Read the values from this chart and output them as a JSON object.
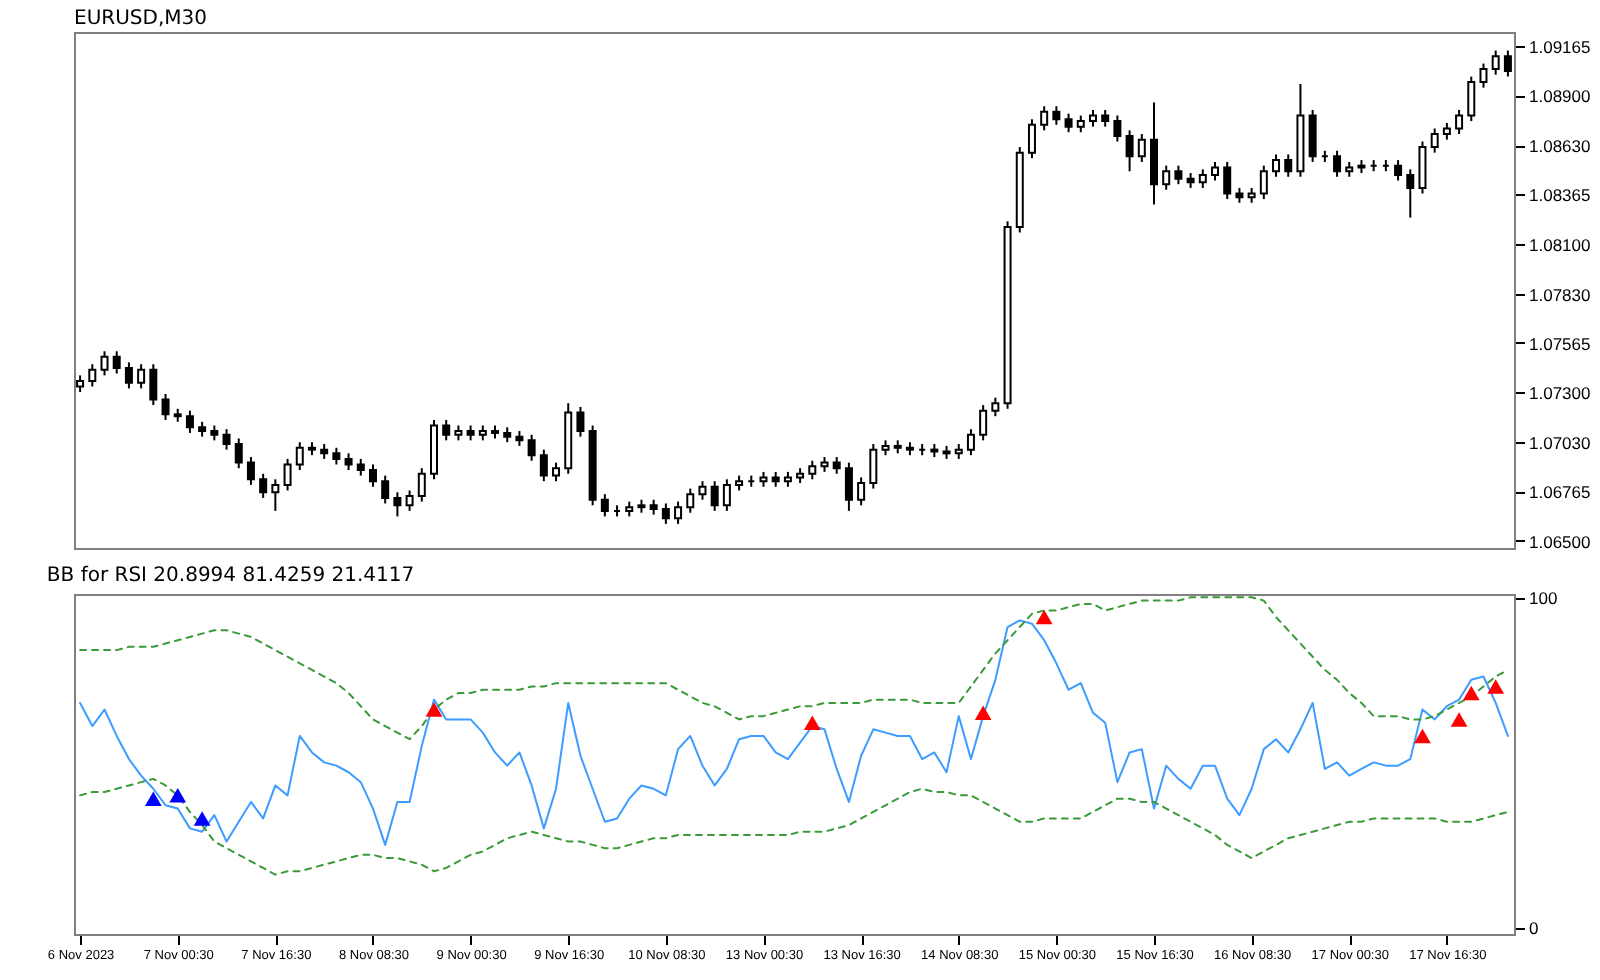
{
  "chart_data": [
    {
      "type": "candlestick",
      "title": "EURUSD,M30",
      "color": "#000000",
      "grid": false,
      "tick_labels": "y",
      "ylim": [
        1.0646,
        1.0924
      ],
      "categories": [
        null,
        null,
        null,
        null,
        null,
        null,
        null,
        null,
        null,
        null,
        null,
        null,
        null,
        null,
        null,
        null,
        null,
        null,
        null,
        null,
        null,
        null,
        null,
        null,
        null,
        null,
        null,
        null,
        null,
        null,
        null,
        null,
        null,
        null,
        null,
        null,
        null,
        null,
        null,
        null,
        null,
        null,
        null,
        null,
        null,
        null,
        null,
        null,
        null,
        null,
        null,
        null,
        null,
        null,
        null,
        null,
        null,
        null,
        null,
        null,
        null,
        null,
        null,
        null,
        null,
        null,
        null,
        null,
        null,
        null,
        null,
        null,
        null,
        null,
        null,
        null,
        null,
        null,
        null,
        null,
        null,
        null,
        null,
        null,
        null,
        null,
        null,
        null,
        null,
        null,
        null,
        null,
        null,
        null,
        null,
        null,
        null,
        null,
        null,
        null,
        null,
        null,
        null,
        null,
        null,
        null,
        null,
        null,
        null,
        null,
        null,
        null,
        null,
        null,
        null,
        null,
        null,
        null
      ],
      "yticks": [
        1.09165,
        {
          "value": 1.089,
          "label": "1.08900"
        },
        {
          "value": 1.0863,
          "label": "1.08630"
        },
        1.08365,
        {
          "value": 1.081,
          "label": "1.08100"
        },
        {
          "value": 1.0783,
          "label": "1.07830"
        },
        1.07565,
        {
          "value": 1.073,
          "label": "1.07300"
        },
        {
          "value": 1.0703,
          "label": "1.07030"
        },
        1.06765,
        {
          "value": 1.065,
          "label": "1.06500"
        }
      ],
      "ohlc": [
        [
          1.0733,
          1.0739,
          1.073,
          1.0736
        ],
        [
          1.0736,
          1.0745,
          1.0733,
          1.0742
        ],
        [
          1.0742,
          1.0752,
          1.0739,
          1.0749
        ],
        [
          1.0749,
          1.0752,
          1.074,
          1.0743
        ],
        [
          1.0743,
          1.0746,
          1.0732,
          1.0735
        ],
        [
          1.0735,
          1.0745,
          1.0732,
          1.0742
        ],
        [
          1.0742,
          1.0745,
          1.0723,
          1.0726
        ],
        [
          1.0726,
          1.0729,
          1.0715,
          1.0718
        ],
        [
          1.0718,
          1.0721,
          1.0714,
          1.0717
        ],
        [
          1.0717,
          1.072,
          1.0708,
          1.0711
        ],
        [
          1.0711,
          1.0714,
          1.0706,
          1.0709
        ],
        [
          1.0709,
          1.0712,
          1.0704,
          1.0707
        ],
        [
          1.0707,
          1.071,
          1.0699,
          1.0702
        ],
        [
          1.0702,
          1.0705,
          1.0689,
          1.0692
        ],
        [
          1.0692,
          1.0695,
          1.068,
          1.0683
        ],
        [
          1.0683,
          1.0686,
          1.0673,
          1.0676
        ],
        [
          1.0676,
          1.0683,
          1.0666,
          1.068
        ],
        [
          1.068,
          1.0694,
          1.0677,
          1.0691
        ],
        [
          1.0691,
          1.0703,
          1.0688,
          1.07
        ],
        [
          1.07,
          1.0703,
          1.0696,
          1.0699
        ],
        [
          1.0699,
          1.0702,
          1.0694,
          1.0697
        ],
        [
          1.0697,
          1.07,
          1.0691,
          1.0694
        ],
        [
          1.0694,
          1.0697,
          1.0688,
          1.0691
        ],
        [
          1.0691,
          1.0694,
          1.0685,
          1.0688
        ],
        [
          1.0688,
          1.0691,
          1.0679,
          1.0682
        ],
        [
          1.0682,
          1.0685,
          1.067,
          1.0673
        ],
        [
          1.0673,
          1.0676,
          1.0663,
          1.0669
        ],
        [
          1.0669,
          1.0677,
          1.0666,
          1.0674
        ],
        [
          1.0674,
          1.0689,
          1.0671,
          1.0686
        ],
        [
          1.0686,
          1.0715,
          1.0683,
          1.0712
        ],
        [
          1.0712,
          1.0715,
          1.0704,
          1.0707
        ],
        [
          1.0707,
          1.0712,
          1.0704,
          1.0709
        ],
        [
          1.0709,
          1.0712,
          1.0704,
          1.0707
        ],
        [
          1.0707,
          1.0712,
          1.0704,
          1.0709
        ],
        [
          1.0709,
          1.0712,
          1.0705,
          1.0708
        ],
        [
          1.0708,
          1.0711,
          1.0703,
          1.0706
        ],
        [
          1.0706,
          1.0709,
          1.0701,
          1.0704
        ],
        [
          1.0704,
          1.0707,
          1.0693,
          1.0696
        ],
        [
          1.0696,
          1.0699,
          1.0682,
          1.0685
        ],
        [
          1.0685,
          1.0692,
          1.0682,
          1.0689
        ],
        [
          1.0689,
          1.0724,
          1.0686,
          1.0719
        ],
        [
          1.0719,
          1.0722,
          1.0706,
          1.0709
        ],
        [
          1.0709,
          1.0712,
          1.0669,
          1.0672
        ],
        [
          1.0672,
          1.0675,
          1.0663,
          1.0666
        ],
        [
          1.0666,
          1.0669,
          1.0663,
          1.0666
        ],
        [
          1.0666,
          1.0671,
          1.0663,
          1.0668
        ],
        [
          1.0668,
          1.0672,
          1.0665,
          1.0669
        ],
        [
          1.0669,
          1.0672,
          1.0664,
          1.0667
        ],
        [
          1.0667,
          1.067,
          1.0659,
          1.0662
        ],
        [
          1.0662,
          1.0671,
          1.0659,
          1.0668
        ],
        [
          1.0668,
          1.0678,
          1.0665,
          1.0675
        ],
        [
          1.0675,
          1.0682,
          1.0672,
          1.0679
        ],
        [
          1.0679,
          1.0682,
          1.0666,
          1.0669
        ],
        [
          1.0669,
          1.0683,
          1.0666,
          1.068
        ],
        [
          1.068,
          1.0685,
          1.0677,
          1.0682
        ],
        [
          1.0682,
          1.0685,
          1.0679,
          1.0682
        ],
        [
          1.0682,
          1.0687,
          1.0679,
          1.0684
        ],
        [
          1.0684,
          1.0687,
          1.0679,
          1.0682
        ],
        [
          1.0682,
          1.0687,
          1.0679,
          1.0684
        ],
        [
          1.0684,
          1.0689,
          1.0681,
          1.0686
        ],
        [
          1.0686,
          1.0693,
          1.0683,
          1.069
        ],
        [
          1.069,
          1.0695,
          1.0687,
          1.0692
        ],
        [
          1.0692,
          1.0695,
          1.0686,
          1.0689
        ],
        [
          1.0689,
          1.0692,
          1.0666,
          1.0672
        ],
        [
          1.0672,
          1.0684,
          1.0669,
          1.0681
        ],
        [
          1.0681,
          1.0702,
          1.0678,
          1.0699
        ],
        [
          1.0699,
          1.0704,
          1.0696,
          1.0701
        ],
        [
          1.0701,
          1.0704,
          1.0697,
          1.07
        ],
        [
          1.07,
          1.0703,
          1.0696,
          1.0699
        ],
        [
          1.0699,
          1.0702,
          1.0696,
          1.0699
        ],
        [
          1.0699,
          1.0702,
          1.0695,
          1.0698
        ],
        [
          1.0698,
          1.0701,
          1.0694,
          1.0697
        ],
        [
          1.0697,
          1.0702,
          1.0694,
          1.0699
        ],
        [
          1.0699,
          1.071,
          1.0696,
          1.0707
        ],
        [
          1.0707,
          1.0723,
          1.0704,
          1.072
        ],
        [
          1.072,
          1.0727,
          1.0717,
          1.0724
        ],
        [
          1.0724,
          1.0822,
          1.0721,
          1.0819
        ],
        [
          1.0819,
          1.0862,
          1.0816,
          1.0859
        ],
        [
          1.0859,
          1.0877,
          1.0856,
          1.0874
        ],
        [
          1.0874,
          1.0884,
          1.0871,
          1.0881
        ],
        [
          1.0881,
          1.0884,
          1.0874,
          1.0877
        ],
        [
          1.0877,
          1.088,
          1.087,
          1.0873
        ],
        [
          1.0873,
          1.0879,
          1.087,
          1.0876
        ],
        [
          1.0876,
          1.0882,
          1.0873,
          1.0879
        ],
        [
          1.0879,
          1.0882,
          1.0873,
          1.0876
        ],
        [
          1.0876,
          1.0879,
          1.0865,
          1.0868
        ],
        [
          1.0868,
          1.0871,
          1.0849,
          1.0857
        ],
        [
          1.0857,
          1.0869,
          1.0854,
          1.0866
        ],
        [
          1.0866,
          1.0886,
          1.0831,
          1.0842
        ],
        [
          1.0842,
          1.0852,
          1.0839,
          1.0849
        ],
        [
          1.0849,
          1.0852,
          1.0842,
          1.0845
        ],
        [
          1.0845,
          1.0848,
          1.084,
          1.0843
        ],
        [
          1.0843,
          1.085,
          1.084,
          1.0847
        ],
        [
          1.0847,
          1.0854,
          1.0844,
          1.0851
        ],
        [
          1.0851,
          1.0854,
          1.0834,
          1.0837
        ],
        [
          1.0837,
          1.084,
          1.0832,
          1.0835
        ],
        [
          1.0835,
          1.084,
          1.0832,
          1.0837
        ],
        [
          1.0837,
          1.0852,
          1.0834,
          1.0849
        ],
        [
          1.0849,
          1.0858,
          1.0846,
          1.0855
        ],
        [
          1.0855,
          1.0858,
          1.0846,
          1.0849
        ],
        [
          1.0849,
          1.0896,
          1.0846,
          1.0879
        ],
        [
          1.0879,
          1.0882,
          1.0854,
          1.0857
        ],
        [
          1.0857,
          1.086,
          1.0854,
          1.0857
        ],
        [
          1.0857,
          1.086,
          1.0846,
          1.0849
        ],
        [
          1.0849,
          1.0854,
          1.0846,
          1.0851
        ],
        [
          1.0851,
          1.0855,
          1.0848,
          1.0852
        ],
        [
          1.0852,
          1.0855,
          1.0849,
          1.0852
        ],
        [
          1.0852,
          1.0855,
          1.0849,
          1.0852
        ],
        [
          1.0852,
          1.0855,
          1.0844,
          1.0847
        ],
        [
          1.0847,
          1.085,
          1.0824,
          1.084
        ],
        [
          1.084,
          1.0865,
          1.0837,
          1.0862
        ],
        [
          1.0862,
          1.0872,
          1.0859,
          1.0869
        ],
        [
          1.0869,
          1.0875,
          1.0866,
          1.0872
        ],
        [
          1.0872,
          1.0882,
          1.0869,
          1.0879
        ],
        [
          1.0879,
          1.09,
          1.0876,
          1.0897
        ],
        [
          1.0897,
          1.0907,
          1.0894,
          1.0904
        ],
        [
          1.0904,
          1.0914,
          1.0901,
          1.0911
        ],
        [
          1.0911,
          1.0914,
          1.09,
          1.0903
        ]
      ]
    },
    {
      "type": "line",
      "title": "BB for RSI 20.8994 81.4259 21.4117",
      "grid": false,
      "ylim": [
        -2,
        101
      ],
      "yticks": [
        0,
        100
      ],
      "categories": [
        "6 Nov 2023",
        null,
        null,
        null,
        null,
        null,
        null,
        null,
        "7 Nov 00:30",
        null,
        null,
        null,
        null,
        null,
        null,
        null,
        "7 Nov 16:30",
        null,
        null,
        null,
        null,
        null,
        null,
        null,
        "8 Nov 08:30",
        null,
        null,
        null,
        null,
        null,
        null,
        null,
        "9 Nov 00:30",
        null,
        null,
        null,
        null,
        null,
        null,
        null,
        "9 Nov 16:30",
        null,
        null,
        null,
        null,
        null,
        null,
        null,
        "10 Nov 08:30",
        null,
        null,
        null,
        null,
        null,
        null,
        null,
        "13 Nov 00:30",
        null,
        null,
        null,
        null,
        null,
        null,
        null,
        "13 Nov 16:30",
        null,
        null,
        null,
        null,
        null,
        null,
        null,
        "14 Nov 08:30",
        null,
        null,
        null,
        null,
        null,
        null,
        null,
        "15 Nov 00:30",
        null,
        null,
        null,
        null,
        null,
        null,
        null,
        "15 Nov 16:30",
        null,
        null,
        null,
        null,
        null,
        null,
        null,
        "16 Nov 08:30",
        null,
        null,
        null,
        null,
        null,
        null,
        null,
        "17 Nov 00:30",
        null,
        null,
        null,
        null,
        null,
        null,
        null,
        "17 Nov 16:30",
        null,
        null,
        null,
        null,
        null
      ],
      "series": [
        {
          "type": "line",
          "color": "#3c9cff",
          "line_style": "solid",
          "values": [
            68,
            61,
            66,
            58,
            51,
            46,
            42,
            37,
            36,
            30,
            29,
            34,
            26,
            32,
            38,
            33,
            43,
            40,
            58,
            53,
            50,
            49,
            47,
            44,
            36,
            25,
            38,
            38,
            55,
            69,
            63,
            63,
            63,
            59,
            53,
            49,
            53,
            43,
            30,
            42,
            68,
            52,
            42,
            32,
            33,
            39,
            43,
            42,
            40,
            54,
            58,
            49,
            43,
            48,
            57,
            58,
            58,
            53,
            51,
            56,
            61,
            60,
            48,
            38,
            52,
            60,
            59,
            58,
            58,
            51,
            53,
            47,
            64,
            51,
            64,
            75,
            91,
            93,
            92,
            87,
            80,
            72,
            74,
            65,
            62,
            44,
            53,
            54,
            36,
            49,
            45,
            42,
            49,
            49,
            39,
            34,
            42,
            54,
            57,
            53,
            60,
            68,
            48,
            50,
            46,
            48,
            50,
            49,
            49,
            51,
            66,
            63,
            67,
            69,
            75,
            76,
            68,
            58
          ]
        },
        {
          "type": "line",
          "color": "#3a9a3a",
          "line_style": "dashed",
          "values": [
            84,
            84,
            84,
            84,
            85,
            85,
            85,
            86,
            87,
            88,
            89,
            90,
            90,
            89,
            88,
            86,
            84,
            82,
            80,
            78,
            76,
            74,
            71,
            67,
            63,
            61,
            59,
            57,
            61,
            66,
            69,
            71,
            71,
            72,
            72,
            72,
            72,
            73,
            73,
            74,
            74,
            74,
            74,
            74,
            74,
            74,
            74,
            74,
            74,
            72,
            70,
            68,
            67,
            65,
            63,
            64,
            64,
            65,
            66,
            67,
            67,
            68,
            68,
            68,
            68,
            69,
            69,
            69,
            69,
            68,
            68,
            68,
            68,
            73,
            78,
            83,
            87,
            91,
            95,
            96,
            96,
            97,
            98,
            98,
            96,
            97,
            98,
            99,
            99,
            99,
            99,
            100,
            100,
            100,
            100,
            100,
            100,
            99,
            94,
            90,
            86,
            82,
            78,
            75,
            71,
            68,
            64,
            64,
            64,
            63,
            63,
            64,
            66,
            68,
            70,
            73,
            76,
            78
          ]
        },
        {
          "type": "line",
          "color": "#3a9a3a",
          "line_style": "dashed",
          "values": [
            40,
            41,
            41,
            42,
            43,
            44,
            45,
            43,
            40,
            35,
            31,
            26,
            24,
            22,
            20,
            18,
            16,
            17,
            17,
            18,
            19,
            20,
            21,
            22,
            22,
            21,
            21,
            20,
            19,
            17,
            18,
            20,
            22,
            23,
            25,
            27,
            28,
            29,
            28,
            27,
            26,
            26,
            25,
            24,
            24,
            25,
            26,
            27,
            27,
            28,
            28,
            28,
            28,
            28,
            28,
            28,
            28,
            28,
            28,
            29,
            29,
            29,
            30,
            31,
            33,
            35,
            37,
            39,
            41,
            42,
            41,
            41,
            40,
            40,
            38,
            36,
            34,
            32,
            32,
            33,
            33,
            33,
            33,
            35,
            37,
            39,
            39,
            38,
            38,
            36,
            34,
            32,
            30,
            28,
            25,
            23,
            21,
            23,
            25,
            27,
            28,
            29,
            30,
            31,
            32,
            32,
            33,
            33,
            33,
            33,
            33,
            33,
            32,
            32,
            32,
            33,
            34,
            35
          ]
        },
        {
          "type": "scatter",
          "color": "#0000ff",
          "marker": "triangle",
          "values": [
            null,
            null,
            null,
            null,
            null,
            null,
            39,
            null,
            40,
            null,
            33,
            null,
            null,
            null,
            null,
            null,
            null,
            null,
            null,
            null,
            null,
            null,
            null,
            null,
            null,
            null,
            null,
            null,
            null,
            null,
            null,
            null,
            null,
            null,
            null,
            null,
            null,
            null,
            null,
            null,
            null,
            null,
            null,
            null,
            null,
            null,
            null,
            null,
            null,
            null,
            null,
            null,
            null,
            null,
            null,
            null,
            null,
            null,
            null,
            null,
            null,
            null,
            null,
            null,
            null,
            null,
            null,
            null,
            null,
            null,
            null,
            null,
            null,
            null,
            null,
            null,
            null,
            null,
            null,
            null,
            null,
            null,
            null,
            null,
            null,
            null,
            null,
            null,
            null,
            null,
            null,
            null,
            null,
            null,
            null,
            null,
            null,
            null,
            null,
            null,
            null,
            null,
            null,
            null,
            null,
            null,
            null,
            null,
            null,
            null,
            null,
            null,
            null,
            null,
            null,
            null,
            null,
            null
          ]
        },
        {
          "type": "scatter",
          "color": "#ff0000",
          "marker": "triangle",
          "values": [
            null,
            null,
            null,
            null,
            null,
            null,
            null,
            null,
            null,
            null,
            null,
            null,
            null,
            null,
            null,
            null,
            null,
            null,
            null,
            null,
            null,
            null,
            null,
            null,
            null,
            null,
            null,
            null,
            null,
            66,
            null,
            null,
            null,
            null,
            null,
            null,
            null,
            null,
            null,
            null,
            null,
            null,
            null,
            null,
            null,
            null,
            null,
            null,
            null,
            null,
            null,
            null,
            null,
            null,
            null,
            null,
            null,
            null,
            null,
            null,
            62,
            null,
            null,
            null,
            null,
            null,
            null,
            null,
            null,
            null,
            null,
            null,
            null,
            null,
            65,
            null,
            null,
            null,
            null,
            94,
            null,
            null,
            null,
            null,
            null,
            null,
            null,
            null,
            null,
            null,
            null,
            null,
            null,
            null,
            null,
            null,
            null,
            null,
            null,
            null,
            null,
            null,
            null,
            null,
            null,
            null,
            null,
            null,
            null,
            null,
            58,
            null,
            null,
            63,
            71,
            null,
            73,
            null
          ]
        }
      ]
    }
  ]
}
